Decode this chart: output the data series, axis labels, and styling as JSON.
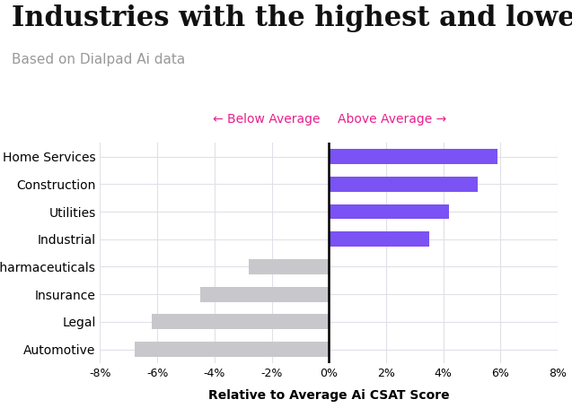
{
  "title": "Industries with the highest and lowest Ai CSAT",
  "subtitle": "Based on Dialpad Ai data",
  "xlabel": "Relative to Average Ai CSAT Score",
  "categories": [
    "Automotive",
    "Legal",
    "Insurance",
    "Pharmaceuticals",
    "Industrial",
    "Utilities",
    "Construction",
    "Home Services"
  ],
  "values": [
    -6.8,
    -6.2,
    -4.5,
    -2.8,
    3.5,
    4.2,
    5.2,
    5.9
  ],
  "bar_color_positive": "#7B52F4",
  "bar_color_negative": "#C8C8CC",
  "xlim": [
    -8,
    8
  ],
  "xticks": [
    -8,
    -6,
    -4,
    -2,
    0,
    2,
    4,
    6,
    8
  ],
  "xtick_labels": [
    "-8%",
    "-6%",
    "-4%",
    "-2%",
    "0%",
    "2%",
    "4%",
    "6%",
    "8%"
  ],
  "annotation_below": "← Below Average",
  "annotation_above": "Above Average →",
  "annotation_color": "#E91E8C",
  "title_fontsize": 22,
  "subtitle_fontsize": 11,
  "label_fontsize": 10,
  "annotation_fontsize": 10,
  "background_color": "#FFFFFF",
  "grid_color": "#E0E0E8",
  "bar_height": 0.55
}
